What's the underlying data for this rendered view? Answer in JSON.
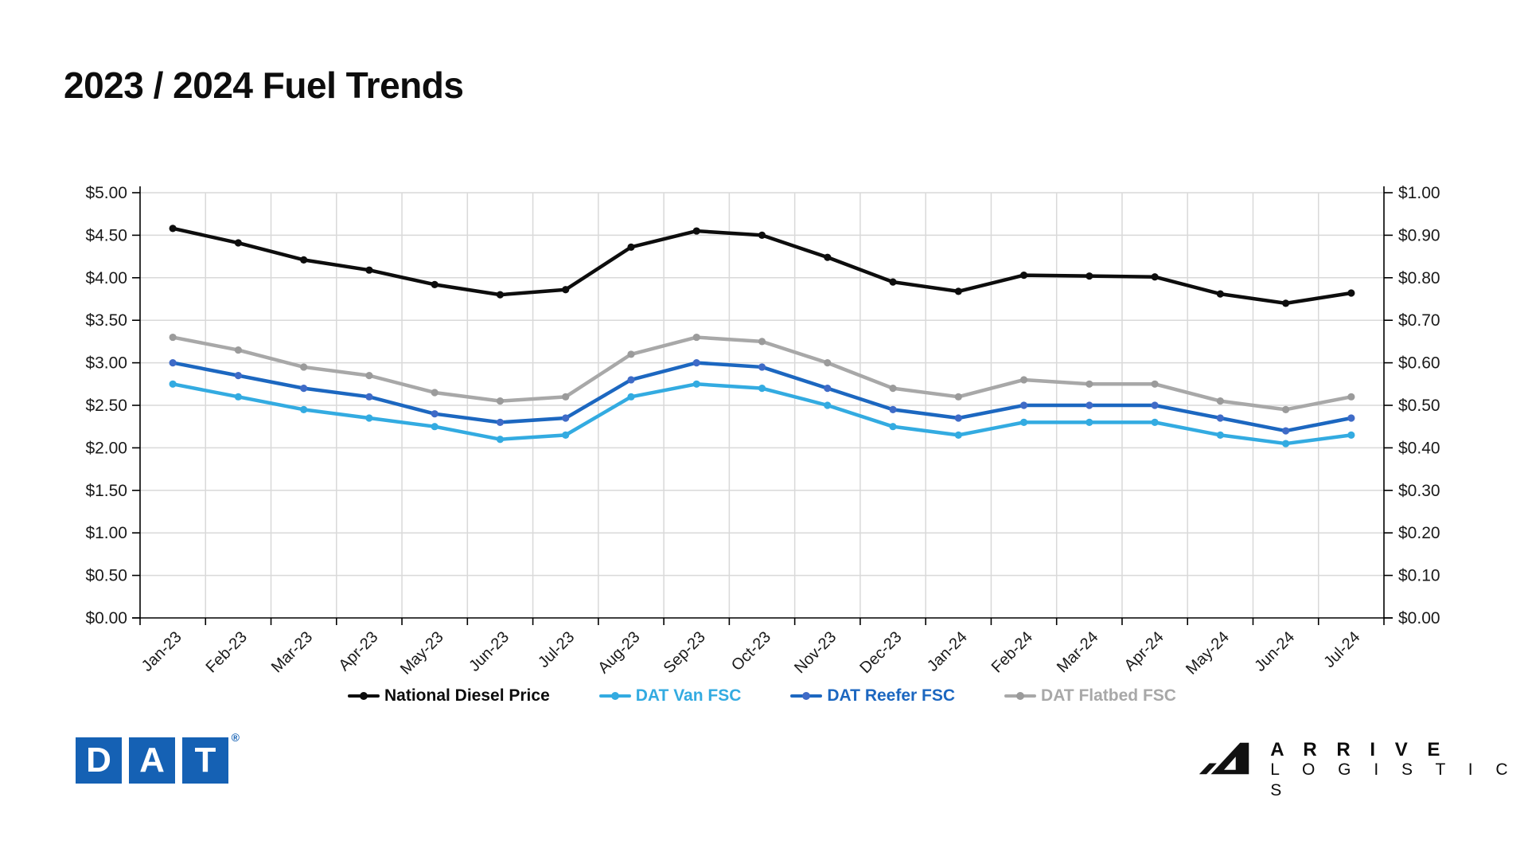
{
  "page": {
    "title": "2023 / 2024 Fuel Trends"
  },
  "chart_data": {
    "type": "line",
    "categories": [
      "Jan-23",
      "Feb-23",
      "Mar-23",
      "Apr-23",
      "May-23",
      "Jun-23",
      "Jul-23",
      "Aug-23",
      "Sep-23",
      "Oct-23",
      "Nov-23",
      "Dec-23",
      "Jan-24",
      "Feb-24",
      "Mar-24",
      "Apr-24",
      "May-24",
      "Jun-24",
      "Jul-24"
    ],
    "series": [
      {
        "name": "National Diesel Price",
        "axis": "left",
        "color": "#0d0d0d",
        "marker_color": "#0d0d0d",
        "values": [
          4.58,
          4.41,
          4.21,
          4.09,
          3.92,
          3.8,
          3.86,
          4.36,
          4.55,
          4.5,
          4.24,
          3.95,
          3.84,
          4.03,
          4.02,
          4.01,
          3.81,
          3.7,
          3.82
        ]
      },
      {
        "name": "DAT Van FSC",
        "axis": "right",
        "color": "#33abe1",
        "marker_color": "#33abe1",
        "values": [
          0.55,
          0.52,
          0.49,
          0.47,
          0.45,
          0.42,
          0.43,
          0.52,
          0.55,
          0.54,
          0.5,
          0.45,
          0.43,
          0.46,
          0.46,
          0.46,
          0.43,
          0.41,
          0.43
        ]
      },
      {
        "name": "DAT Reefer FSC",
        "axis": "right",
        "color": "#1c67c0",
        "marker_color": "#3f6bc7",
        "values": [
          0.6,
          0.57,
          0.54,
          0.52,
          0.48,
          0.46,
          0.47,
          0.56,
          0.6,
          0.59,
          0.54,
          0.49,
          0.47,
          0.5,
          0.5,
          0.5,
          0.47,
          0.44,
          0.47
        ]
      },
      {
        "name": "DAT Flatbed FSC",
        "axis": "right",
        "color": "#a8a8a8",
        "marker_color": "#9b9b9b",
        "values": [
          0.66,
          0.63,
          0.59,
          0.57,
          0.53,
          0.51,
          0.52,
          0.62,
          0.66,
          0.65,
          0.6,
          0.54,
          0.52,
          0.56,
          0.55,
          0.55,
          0.51,
          0.49,
          0.52
        ]
      }
    ],
    "left_axis": {
      "min": 0,
      "max": 5,
      "step": 0.5,
      "labels": [
        "$5.00",
        "$4.50",
        "$4.00",
        "$3.50",
        "$3.00",
        "$2.50",
        "$2.00",
        "$1.50",
        "$1.00",
        "$0.50",
        "$0.00"
      ]
    },
    "right_axis": {
      "min": 0,
      "max": 1,
      "step": 0.1,
      "labels": [
        "$1.00",
        "$0.90",
        "$0.80",
        "$0.70",
        "$0.60",
        "$0.50",
        "$0.40",
        "$0.30",
        "$0.20",
        "$0.10",
        "$0.00"
      ]
    },
    "grid": true,
    "gridline_color": "#d9d9d9",
    "legend_position": "bottom"
  },
  "branding": {
    "dat_letters": [
      "D",
      "A",
      "T"
    ],
    "dat_registered": "®",
    "arrive_line1": "A R R I V E",
    "arrive_line2": "L O G I S T I C S"
  }
}
